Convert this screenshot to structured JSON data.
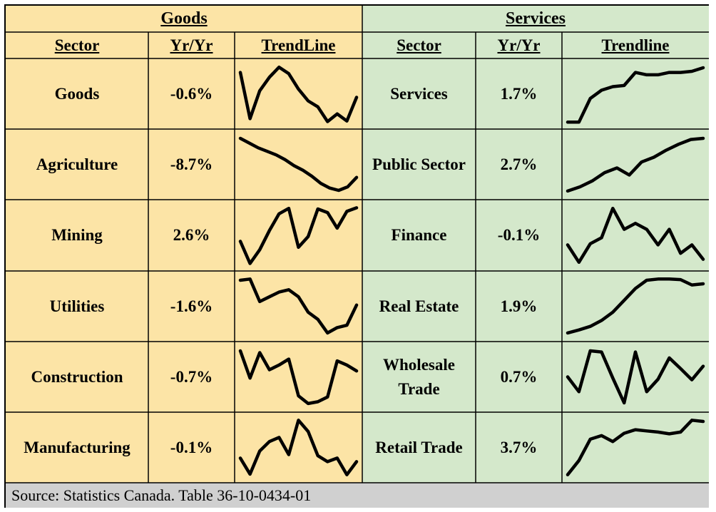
{
  "header": {
    "goods": "Goods",
    "services": "Services"
  },
  "columns": {
    "goods": [
      "Sector",
      "Yr/Yr",
      "TrendLine"
    ],
    "services": [
      "Sector",
      "Yr/Yr",
      "Trendline"
    ]
  },
  "source": "Source: Statistics Canada. Table 36-10-0434-01",
  "chart_data": {
    "type": "table",
    "rows": [
      {
        "goods": {
          "sector": "Goods",
          "yoy": "-0.6%",
          "trend": [
            0.86,
            0.08,
            0.55,
            0.78,
            0.95,
            0.84,
            0.58,
            0.38,
            0.28,
            0.03,
            0.16,
            0.04,
            0.44
          ]
        },
        "services": {
          "sector": "Services",
          "yoy": "1.7%",
          "trend": [
            0.02,
            0.02,
            0.42,
            0.56,
            0.62,
            0.64,
            0.86,
            0.82,
            0.82,
            0.86,
            0.86,
            0.88,
            0.94
          ]
        }
      },
      {
        "goods": {
          "sector": "Agriculture",
          "yoy": "-8.7%",
          "trend": [
            0.94,
            0.86,
            0.78,
            0.72,
            0.66,
            0.58,
            0.48,
            0.4,
            0.3,
            0.18,
            0.1,
            0.06,
            0.12,
            0.28
          ]
        },
        "services": {
          "sector": "Public Sector",
          "yoy": "2.7%",
          "trend": [
            0.05,
            0.12,
            0.22,
            0.36,
            0.44,
            0.32,
            0.54,
            0.62,
            0.74,
            0.84,
            0.92,
            0.94
          ]
        }
      },
      {
        "goods": {
          "sector": "Mining",
          "yoy": "2.6%",
          "trend": [
            0.4,
            0.03,
            0.26,
            0.58,
            0.86,
            0.95,
            0.3,
            0.48,
            0.94,
            0.88,
            0.62,
            0.9,
            0.96
          ]
        },
        "services": {
          "sector": "Finance",
          "yoy": "-0.1%",
          "trend": [
            0.34,
            0.05,
            0.36,
            0.46,
            0.95,
            0.6,
            0.7,
            0.6,
            0.34,
            0.6,
            0.2,
            0.34,
            0.1
          ]
        }
      },
      {
        "goods": {
          "sector": "Utilities",
          "yoy": "-1.6%",
          "trend": [
            0.94,
            0.96,
            0.58,
            0.66,
            0.74,
            0.78,
            0.66,
            0.4,
            0.28,
            0.05,
            0.14,
            0.18,
            0.52
          ]
        },
        "services": {
          "sector": "Real Estate",
          "yoy": "1.9%",
          "trend": [
            0.05,
            0.1,
            0.16,
            0.26,
            0.4,
            0.6,
            0.8,
            0.94,
            0.96,
            0.96,
            0.95,
            0.86,
            0.88
          ]
        }
      },
      {
        "goods": {
          "sector": "Construction",
          "yoy": "-0.7%",
          "trend": [
            0.94,
            0.48,
            0.91,
            0.62,
            0.7,
            0.8,
            0.18,
            0.05,
            0.08,
            0.16,
            0.77,
            0.7,
            0.6
          ]
        },
        "services": {
          "sector": "Wholesale Trade",
          "yoy": "0.7%",
          "trend": [
            0.5,
            0.25,
            0.94,
            0.92,
            0.48,
            0.06,
            0.92,
            0.25,
            0.46,
            0.82,
            0.64,
            0.45,
            0.68
          ]
        }
      },
      {
        "goods": {
          "sector": "Manufacturing",
          "yoy": "-0.1%",
          "trend": [
            0.32,
            0.05,
            0.44,
            0.6,
            0.67,
            0.38,
            0.96,
            0.77,
            0.36,
            0.26,
            0.32,
            0.04,
            0.26
          ]
        },
        "services": {
          "sector": "Retail Trade",
          "yoy": "3.7%",
          "trend": [
            0.04,
            0.28,
            0.64,
            0.7,
            0.6,
            0.74,
            0.8,
            0.78,
            0.76,
            0.73,
            0.76,
            0.96,
            0.94
          ]
        }
      }
    ]
  }
}
